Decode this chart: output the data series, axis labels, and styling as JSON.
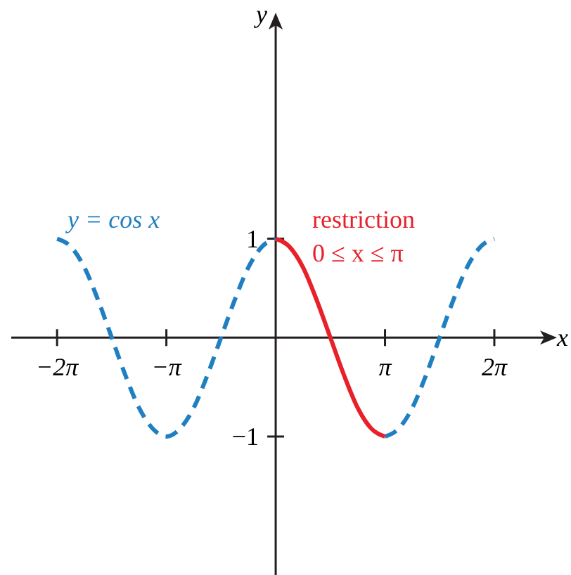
{
  "chart_data": {
    "type": "line",
    "xlabel": "x",
    "ylabel": "y",
    "xlim": [
      -7.6,
      7.84
    ],
    "ylim": [
      -2.4,
      3.2
    ],
    "xticks": [
      {
        "value": -6.283,
        "label": "−2π"
      },
      {
        "value": -3.142,
        "label": "−π"
      },
      {
        "value": 3.142,
        "label": "π"
      },
      {
        "value": 6.283,
        "label": "2π"
      }
    ],
    "yticks": [
      1,
      {
        "value": -1,
        "label": "−1"
      }
    ],
    "series": [
      {
        "name": "y = cos x",
        "color": "#1f7fc1",
        "line_style": "dashed",
        "x": [
          -6.283,
          -5.89,
          -5.498,
          -5.105,
          -4.712,
          -4.32,
          -3.927,
          -3.534,
          -3.142,
          -2.749,
          -2.356,
          -1.963,
          -1.571,
          -1.178,
          -0.785,
          -0.393,
          0,
          0.393,
          0.785,
          1.178,
          1.571,
          1.963,
          2.356,
          2.749,
          3.142,
          3.534,
          3.927,
          4.32,
          4.712,
          5.105,
          5.498,
          5.89,
          6.283
        ],
        "values": [
          1,
          0.92,
          0.71,
          0.38,
          0,
          -0.38,
          -0.71,
          -0.92,
          -1,
          -0.92,
          -0.71,
          -0.38,
          0,
          0.38,
          0.71,
          0.92,
          1,
          null,
          null,
          null,
          null,
          null,
          null,
          null,
          -1,
          -0.92,
          -0.71,
          -0.38,
          0,
          0.38,
          0.71,
          0.92,
          1
        ]
      },
      {
        "name": "restriction 0 ≤ x ≤ π",
        "color": "#e8202a",
        "line_style": "solid",
        "x": [
          0,
          0.393,
          0.785,
          1.178,
          1.571,
          1.963,
          2.356,
          2.749,
          3.142
        ],
        "values": [
          1,
          0.92,
          0.71,
          0.38,
          0,
          -0.38,
          -0.71,
          -0.92,
          -1
        ]
      }
    ]
  }
}
